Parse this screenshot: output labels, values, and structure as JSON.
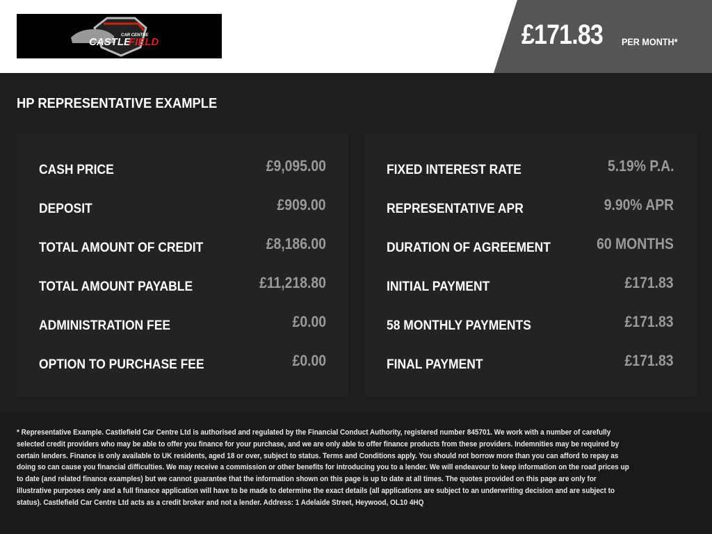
{
  "header": {
    "logo_text": "CASTLEFIELD CAR CENTRE",
    "monthly_price": "£171.83",
    "per_month_label": "PER MONTH*"
  },
  "section_title": "HP REPRESENTATIVE EXAMPLE",
  "left_table": [
    {
      "label": "CASH PRICE",
      "value": "£9,095.00"
    },
    {
      "label": "DEPOSIT",
      "value": "£909.00"
    },
    {
      "label": "TOTAL AMOUNT OF CREDIT",
      "value": "£8,186.00"
    },
    {
      "label": "TOTAL AMOUNT PAYABLE",
      "value": "£11,218.80"
    },
    {
      "label": "ADMINISTRATION FEE",
      "value": "£0.00"
    },
    {
      "label": "OPTION TO PURCHASE FEE",
      "value": "£0.00"
    }
  ],
  "right_table": [
    {
      "label": "FIXED INTEREST RATE",
      "value": "5.19% P.A."
    },
    {
      "label": "REPRESENTATIVE APR",
      "value": "9.90% APR"
    },
    {
      "label": "DURATION OF AGREEMENT",
      "value": "60 MONTHS"
    },
    {
      "label": "INITIAL PAYMENT",
      "value": "£171.83"
    },
    {
      "label": "58 MONTHLY PAYMENTS",
      "value": "£171.83"
    },
    {
      "label": "FINAL PAYMENT",
      "value": "£171.83"
    }
  ],
  "disclaimer": "* Representative Example. Castlefield Car Centre Ltd is authorised and regulated by the Financial Conduct Authority, registered number 845701. We work with a number of carefully selected credit providers who may be able to offer you finance for your purchase, and we are only able to offer finance products from these providers. Indemnities may be required by certain lenders. Finance is only available to UK residents, aged 18 or over, subject to status. Terms and Conditions apply. You should not borrow more than you can afford to repay as doing so can cause you financial difficulties. We may receive a commission or other benefits for introducing you to a lender. We will endeavour to keep information on the road prices up to date (and related finance examples) but we cannot guarantee that the information shown on this page is up to date at all times. The quotes provided on this page are only for illustrative purposes only and a full finance application will have to be made to determine the exact details (all applications are subject to an underwriting decision and are subject to status). Castlefield Car Centre Ltd acts as a credit broker and not a lender. Address: 1 Adelaide Street, Heywood, OL10 4HQ"
}
